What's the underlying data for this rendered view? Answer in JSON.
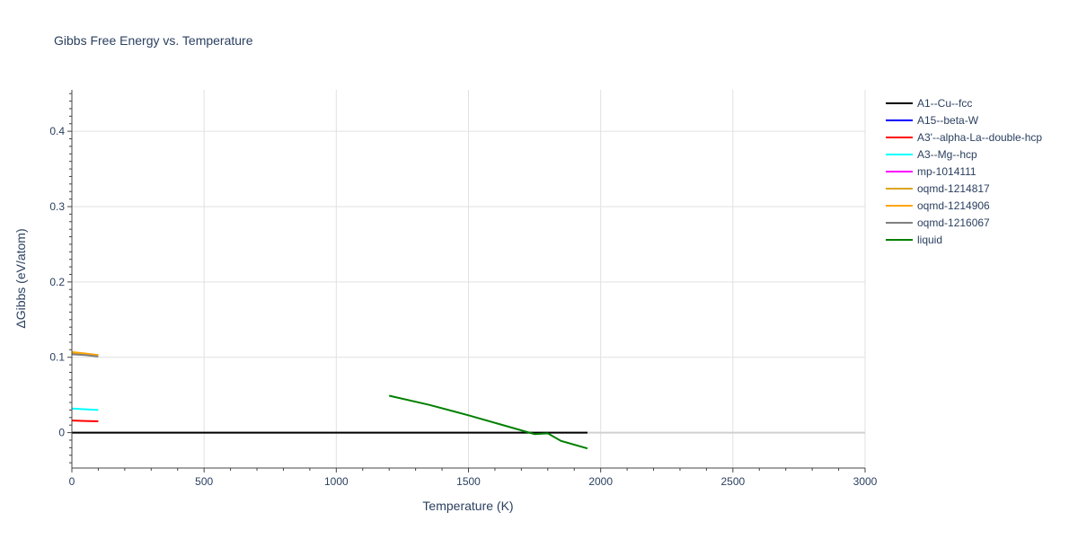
{
  "chart_data": {
    "type": "line",
    "title": "Gibbs Free Energy vs. Temperature",
    "xlabel": "Temperature (K)",
    "ylabel": "ΔGibbs (eV/atom)",
    "xlim": [
      0,
      3000
    ],
    "ylim": [
      -0.047,
      0.455
    ],
    "xticks": [
      0,
      500,
      1000,
      1500,
      2000,
      2500,
      3000
    ],
    "yticks": [
      0,
      0.1,
      0.2,
      0.3,
      0.4
    ],
    "ytick_labels": [
      "0",
      "0.1",
      "0.2",
      "0.3",
      "0.4"
    ],
    "grid": true,
    "legend_position": "right",
    "series": [
      {
        "name": "A1--Cu--fcc",
        "color": "#000000",
        "x": [
          0,
          1950
        ],
        "y": [
          0,
          0
        ]
      },
      {
        "name": "A15--beta-W",
        "color": "#0000ff",
        "x": [],
        "y": []
      },
      {
        "name": "A3'--alpha-La--double-hcp",
        "color": "#ff0000",
        "x": [
          0,
          50,
          100
        ],
        "y": [
          0.016,
          0.0155,
          0.015
        ]
      },
      {
        "name": "A3--Mg--hcp",
        "color": "#00ffff",
        "x": [
          0,
          50,
          100
        ],
        "y": [
          0.032,
          0.031,
          0.03
        ]
      },
      {
        "name": "mp-1014111",
        "color": "#ff00ff",
        "x": [],
        "y": []
      },
      {
        "name": "oqmd-1214817",
        "color": "#daa520",
        "x": [
          0,
          50,
          100
        ],
        "y": [
          0.105,
          0.104,
          0.103
        ]
      },
      {
        "name": "oqmd-1214906",
        "color": "#ffa500",
        "x": [
          0,
          50,
          100
        ],
        "y": [
          0.107,
          0.105,
          0.103
        ]
      },
      {
        "name": "oqmd-1216067",
        "color": "#808080",
        "x": [
          0,
          50,
          100
        ],
        "y": [
          0.104,
          0.103,
          0.101
        ]
      },
      {
        "name": "liquid",
        "color": "#008000",
        "x": [
          1200,
          1350,
          1500,
          1650,
          1750,
          1800,
          1850,
          1950
        ],
        "y": [
          0.049,
          0.037,
          0.023,
          0.008,
          -0.002,
          -0.001,
          -0.011,
          -0.021
        ]
      }
    ]
  }
}
